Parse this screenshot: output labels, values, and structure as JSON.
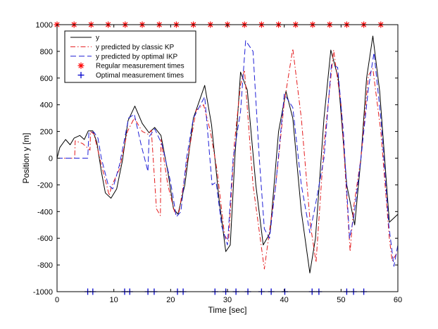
{
  "chart_data": {
    "type": "line",
    "xlabel": "Time [sec]",
    "ylabel": "Position y [m]",
    "xlim": [
      0,
      60
    ],
    "ylim": [
      -1000,
      1000
    ],
    "xticks": [
      0,
      10,
      20,
      30,
      40,
      50,
      60
    ],
    "yticks": [
      -1000,
      -800,
      -600,
      -400,
      -200,
      0,
      200,
      400,
      600,
      800,
      1000
    ],
    "grid": false,
    "legend_position": "top-left",
    "series": [
      {
        "name": "y",
        "style": "solid",
        "color": "#000000",
        "points": [
          [
            0,
            0
          ],
          [
            0.5,
            80
          ],
          [
            1.5,
            140
          ],
          [
            2.3,
            100
          ],
          [
            3,
            150
          ],
          [
            4,
            170
          ],
          [
            4.8,
            140
          ],
          [
            5.5,
            205
          ],
          [
            6.3,
            205
          ],
          [
            7,
            120
          ],
          [
            7.8,
            -100
          ],
          [
            8.5,
            -260
          ],
          [
            9.5,
            -300
          ],
          [
            10.5,
            -230
          ],
          [
            11.5,
            -20
          ],
          [
            12.5,
            280
          ],
          [
            13.7,
            390
          ],
          [
            15,
            260
          ],
          [
            16.2,
            190
          ],
          [
            17.2,
            230
          ],
          [
            18.3,
            170
          ],
          [
            19.5,
            -100
          ],
          [
            20.5,
            -380
          ],
          [
            21.3,
            -420
          ],
          [
            22.5,
            -200
          ],
          [
            24,
            300
          ],
          [
            26,
            545
          ],
          [
            27.2,
            250
          ],
          [
            28.5,
            -300
          ],
          [
            29.7,
            -700
          ],
          [
            30.5,
            -650
          ],
          [
            31.3,
            0
          ],
          [
            32.3,
            645
          ],
          [
            33.5,
            510
          ],
          [
            35,
            -200
          ],
          [
            36.3,
            -650
          ],
          [
            37.5,
            -560
          ],
          [
            39,
            200
          ],
          [
            40.3,
            500
          ],
          [
            41.5,
            300
          ],
          [
            43,
            -400
          ],
          [
            44.5,
            -860
          ],
          [
            45.5,
            -600
          ],
          [
            47,
            300
          ],
          [
            48.2,
            810
          ],
          [
            49.5,
            600
          ],
          [
            51,
            -200
          ],
          [
            52.4,
            -500
          ],
          [
            53.5,
            0
          ],
          [
            54.5,
            600
          ],
          [
            55.6,
            915
          ],
          [
            56.8,
            500
          ],
          [
            58.5,
            -480
          ],
          [
            60,
            -420
          ]
        ]
      },
      {
        "name": "y predicted by classic KP",
        "style": "dashdot",
        "color": "#e41a1c",
        "points": [
          [
            0,
            0
          ],
          [
            3.1,
            0
          ],
          [
            3.2,
            130
          ],
          [
            4.5,
            110
          ],
          [
            5.8,
            60
          ],
          [
            5.9,
            200
          ],
          [
            6.5,
            180
          ],
          [
            8,
            -80
          ],
          [
            9.2,
            -280
          ],
          [
            9.6,
            -210
          ],
          [
            11,
            -80
          ],
          [
            12.4,
            200
          ],
          [
            13.6,
            300
          ],
          [
            15,
            200
          ],
          [
            16,
            180
          ],
          [
            16.6,
            210
          ],
          [
            17.5,
            -380
          ],
          [
            18.2,
            -430
          ],
          [
            18.3,
            140
          ],
          [
            19.5,
            -200
          ],
          [
            20.8,
            -420
          ],
          [
            21.5,
            -400
          ],
          [
            23,
            0
          ],
          [
            24.5,
            360
          ],
          [
            25.8,
            400
          ],
          [
            27,
            200
          ],
          [
            28.2,
            -100
          ],
          [
            29.5,
            -580
          ],
          [
            30.2,
            -620
          ],
          [
            31.2,
            100
          ],
          [
            32.3,
            550
          ],
          [
            33,
            660
          ],
          [
            34.5,
            -200
          ],
          [
            36.5,
            -830
          ],
          [
            38.5,
            -200
          ],
          [
            40,
            420
          ],
          [
            41.5,
            820
          ],
          [
            43,
            300
          ],
          [
            44.6,
            -500
          ],
          [
            45.6,
            -780
          ],
          [
            47,
            100
          ],
          [
            48.7,
            810
          ],
          [
            50,
            400
          ],
          [
            51.6,
            -700
          ],
          [
            52.2,
            -370
          ],
          [
            53.5,
            0
          ],
          [
            54.8,
            620
          ],
          [
            55.6,
            670
          ],
          [
            57,
            200
          ],
          [
            58.5,
            -600
          ],
          [
            59,
            -770
          ],
          [
            60,
            -700
          ]
        ]
      },
      {
        "name": "y predicted by optimal IKP",
        "style": "dashed",
        "color": "#1f1fd6",
        "points": [
          [
            0,
            0
          ],
          [
            5.4,
            0
          ],
          [
            5.6,
            190
          ],
          [
            6.5,
            195
          ],
          [
            7.2,
            150
          ],
          [
            7.8,
            0
          ],
          [
            9,
            -200
          ],
          [
            9.8,
            -230
          ],
          [
            11,
            -50
          ],
          [
            12.6,
            300
          ],
          [
            13.6,
            330
          ],
          [
            14.8,
            100
          ],
          [
            16,
            -100
          ],
          [
            16.2,
            160
          ],
          [
            17.2,
            220
          ],
          [
            18.5,
            100
          ],
          [
            20,
            -180
          ],
          [
            21,
            -440
          ],
          [
            21.8,
            -400
          ],
          [
            22.8,
            0
          ],
          [
            24,
            300
          ],
          [
            26,
            460
          ],
          [
            27.3,
            -200
          ],
          [
            28,
            -180
          ],
          [
            29,
            -510
          ],
          [
            30,
            -650
          ],
          [
            31,
            0
          ],
          [
            32.3,
            350
          ],
          [
            33.2,
            880
          ],
          [
            34.5,
            800
          ],
          [
            35.6,
            0
          ],
          [
            36.5,
            -530
          ],
          [
            37.4,
            -600
          ],
          [
            38.5,
            -200
          ],
          [
            40,
            480
          ],
          [
            41.5,
            380
          ],
          [
            43,
            -200
          ],
          [
            44.5,
            -560
          ],
          [
            45.5,
            -350
          ],
          [
            47,
            0
          ],
          [
            48.3,
            700
          ],
          [
            49.4,
            680
          ],
          [
            50.4,
            200
          ],
          [
            51.5,
            -600
          ],
          [
            52.2,
            -450
          ],
          [
            53.5,
            0
          ],
          [
            54.8,
            520
          ],
          [
            55.8,
            790
          ],
          [
            57,
            300
          ],
          [
            58.4,
            -500
          ],
          [
            59.3,
            -810
          ],
          [
            60,
            -650
          ]
        ]
      },
      {
        "name": "Regular measurement times",
        "style": "marker-star",
        "color": "#ff0000",
        "x": [
          0,
          3,
          6,
          9,
          12,
          15,
          18,
          21,
          24,
          27,
          30,
          33,
          36,
          39,
          42,
          45,
          48,
          51,
          54,
          57
        ],
        "y_constant": 1000
      },
      {
        "name": "Optimal measurement times",
        "style": "marker-plus",
        "color": "#0000cc",
        "x": [
          5.4,
          6.3,
          11.9,
          12.8,
          16,
          17.1,
          21.2,
          22.2,
          27.8,
          29.7,
          31.5,
          33.6,
          36,
          37.7,
          40.1,
          44.9,
          46.1,
          51,
          52.2,
          54
        ],
        "y_constant": -1000
      }
    ]
  }
}
